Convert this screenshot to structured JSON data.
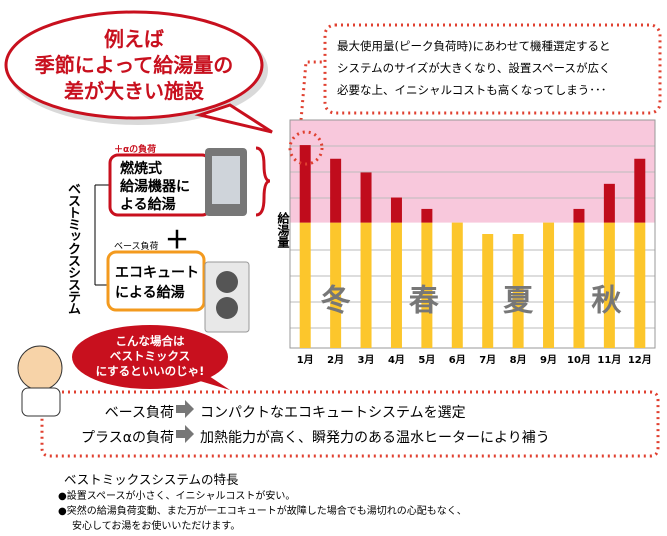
{
  "bubble": {
    "lines": [
      "例えば",
      "季節によって給湯量の",
      "差が大きい施設"
    ]
  },
  "note": {
    "lines": [
      "最大使用量(ピーク負荷時)にあわせて機種選定すると",
      "システムのサイズが大きくなり、設置スペースが広く",
      "必要な上、イニシャルコストも高くなってしまう･･･"
    ]
  },
  "diagram": {
    "system": "ベストミックスシステム",
    "top_tag": "＋αの負荷",
    "top_box": [
      "燃焼式",
      "給湯機器に",
      "よる給湯"
    ],
    "plus": "＋",
    "base_tag": "ベース負荷",
    "base_box": [
      "エコキュート",
      "による給湯"
    ]
  },
  "advice": {
    "lines": [
      "こんな場合は",
      "ベストミックス",
      "にするといいのじゃ!"
    ]
  },
  "summary": {
    "rows": [
      {
        "label": "ベース負荷",
        "text": "コンパクトなエコキュートシステムを選定"
      },
      {
        "label": "プラスαの負荷",
        "text": "加熱能力が高く、瞬発力のある温水ヒーターにより補う"
      }
    ]
  },
  "features": {
    "title": "ベストミックスシステムの特長",
    "lines": [
      "●設置スペースが小さく、イニシャルコストが安い。",
      "●突然の給湯負荷変動、また万が一エコキュートが故障した場合でも湯切れの心配もなく、",
      "安心してお湯をお使いいただけます。"
    ]
  },
  "chart_data": {
    "type": "bar",
    "stacked": true,
    "y_label": "給湯量",
    "categories": [
      "1月",
      "2月",
      "3月",
      "4月",
      "5月",
      "6月",
      "7月",
      "8月",
      "9月",
      "10月",
      "11月",
      "12月"
    ],
    "series": [
      {
        "color": "#fcc62c",
        "values": [
          55,
          55,
          55,
          55,
          55,
          55,
          50,
          50,
          55,
          55,
          55,
          55
        ]
      },
      {
        "color": "#c00c1c",
        "values": [
          34,
          28,
          22,
          11,
          6,
          0,
          0,
          0,
          0,
          6,
          17,
          28
        ]
      }
    ],
    "ylim": [
      0,
      100
    ],
    "peak_color": "#f8c8dc",
    "annotations": [
      "冬",
      "春",
      "夏",
      "秋"
    ]
  }
}
